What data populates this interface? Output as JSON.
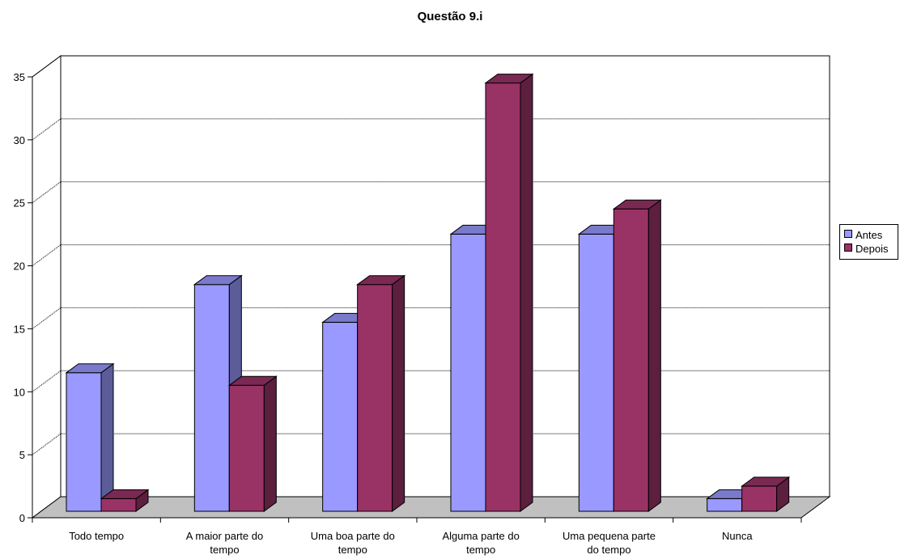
{
  "chart_data": {
    "type": "bar",
    "title": "Questão 9.i",
    "categories": [
      [
        "Todo tempo"
      ],
      [
        "A maior parte do",
        "tempo"
      ],
      [
        "Uma boa parte do",
        "tempo"
      ],
      [
        "Alguma parte do",
        "tempo"
      ],
      [
        "Uma pequena parte",
        "do tempo"
      ],
      [
        "Nunca"
      ]
    ],
    "series": [
      {
        "name": "Antes",
        "values": [
          11,
          18,
          15,
          22,
          22,
          1
        ],
        "color": "#9999ff",
        "side_color": "#5c5c99",
        "top_color": "#7a7acc"
      },
      {
        "name": "Depois",
        "values": [
          1,
          10,
          18,
          34,
          24,
          2
        ],
        "color": "#993366",
        "side_color": "#5c1f3d",
        "top_color": "#7a2952"
      }
    ],
    "yticks": [
      "0",
      "5",
      "10",
      "15",
      "20",
      "25",
      "30",
      "35"
    ],
    "ylim": [
      0,
      35
    ],
    "grid": true,
    "legend_position": "right",
    "floor_color": "#c0c0c0"
  }
}
